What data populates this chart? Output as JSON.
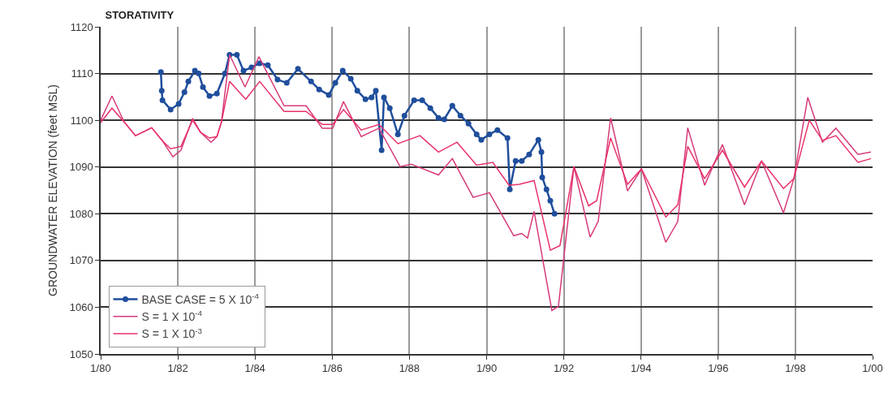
{
  "chart_data": {
    "type": "line",
    "title": "STORATIVITY",
    "ylabel": "GROUNDWATER ELEVATION (feet MSL)",
    "xlim": [
      "1980-01-01",
      "2000-01-01"
    ],
    "xticks": [
      {
        "value": "1980-01-01",
        "label": "1/80"
      },
      {
        "value": "1982-01-01",
        "label": "1/82"
      },
      {
        "value": "1984-01-01",
        "label": "1/84"
      },
      {
        "value": "1986-01-01",
        "label": "1/86"
      },
      {
        "value": "1988-01-01",
        "label": "1/88"
      },
      {
        "value": "1990-01-01",
        "label": "1/90"
      },
      {
        "value": "1992-01-01",
        "label": "1/92"
      },
      {
        "value": "1994-01-01",
        "label": "1/94"
      },
      {
        "value": "1996-01-01",
        "label": "1/96"
      },
      {
        "value": "1998-01-01",
        "label": "1/98"
      },
      {
        "value": "2000-01-01",
        "label": "1/00"
      }
    ],
    "ylim": [
      1050,
      1120
    ],
    "yticks": [
      1050,
      1060,
      1070,
      1080,
      1090,
      1100,
      1110,
      1120
    ],
    "grid": true,
    "legend": "bottom left",
    "line_style": "solid",
    "series": [
      {
        "name": "BASE CASE = 5 X 10$^{-4}$",
        "color": "#1f4e9c",
        "marker": "circle",
        "x": [
          "1981-07-24",
          "1981-08-01",
          "1981-08-08",
          "1981-10-24",
          "1982-01-08",
          "1982-03-04",
          "1982-04-10",
          "1982-06-11",
          "1982-07-17",
          "1982-08-26",
          "1982-10-27",
          "1983-01-05",
          "1983-03-22",
          "1983-05-05",
          "1983-07-13",
          "1983-09-14",
          "1983-11-29",
          "1984-02-14",
          "1984-05-01",
          "1984-08-01",
          "1984-10-27",
          "1985-02-10",
          "1985-06-14",
          "1985-08-30",
          "1985-11-29",
          "1986-01-30",
          "1986-04-10",
          "1986-06-25",
          "1986-08-26",
          "1986-11-11",
          "1987-01-08",
          "1987-02-17",
          "1987-04-13",
          "1987-05-05",
          "1987-06-29",
          "1987-09-14",
          "1987-11-15",
          "1988-02-14",
          "1988-05-01",
          "1988-07-17",
          "1988-10-02",
          "1988-11-26",
          "1989-02-10",
          "1989-04-28",
          "1989-07-13",
          "1989-09-28",
          "1989-11-11",
          "1990-01-27",
          "1990-04-13",
          "1990-07-17",
          "1990-08-08",
          "1990-10-02",
          "1990-11-29",
          "1991-02-07",
          "1991-05-05",
          "1991-06-03",
          "1991-06-11",
          "1991-07-21",
          "1991-08-26",
          "1991-10-05"
        ],
        "values": [
          1110.3,
          1106.3,
          1104.3,
          1102.3,
          1103.5,
          1106,
          1108.3,
          1110.6,
          1110,
          1107.1,
          1105.2,
          1105.7,
          1110,
          1114,
          1114,
          1110.6,
          1111.3,
          1112.2,
          1111.8,
          1108.7,
          1108,
          1111,
          1108.3,
          1106.6,
          1105.4,
          1108,
          1110.6,
          1108.9,
          1106.3,
          1104.5,
          1104.9,
          1106.3,
          1093.6,
          1104.9,
          1102.6,
          1097,
          1101,
          1104.3,
          1104.3,
          1102.6,
          1100.5,
          1100.2,
          1103.1,
          1101,
          1099.3,
          1097,
          1095.8,
          1097,
          1097.9,
          1096.2,
          1085.2,
          1091.3,
          1091.3,
          1092.7,
          1095.8,
          1093.2,
          1087.8,
          1085.2,
          1082.8,
          1080
        ]
      },
      {
        "name": "S = 1 X 10$^{-4}$",
        "color": "#d63a7a",
        "marker": "none",
        "x": [
          "1980-01-01",
          "1980-04-17",
          "1980-08-12",
          "1980-11-26",
          "1981-04-28",
          "1981-08-08",
          "1981-11-15",
          "1982-01-30",
          "1982-05-20",
          "1982-08-04",
          "1982-11-11",
          "1983-01-05",
          "1983-02-17",
          "1983-05-05",
          "1983-09-28",
          "1984-02-07",
          "1984-10-02",
          "1985-04-28",
          "1985-09-28",
          "1986-01-05",
          "1986-04-17",
          "1986-10-02",
          "1987-03-19",
          "1987-10-05",
          "1988-01-19",
          "1988-10-02",
          "1989-02-10",
          "1989-08-26",
          "1990-01-27",
          "1990-09-14",
          "1990-11-29",
          "1991-01-23",
          "1991-03-26",
          "1991-09-10",
          "1991-11-11",
          "1992-04-06",
          "1992-09-06",
          "1992-11-22",
          "1993-03-19",
          "1993-08-26",
          "1994-01-05",
          "1994-08-23",
          "1994-12-14",
          "1995-03-19",
          "1995-08-26",
          "1996-02-10",
          "1996-09-06",
          "1997-02-14",
          "1997-09-10",
          "1997-12-17",
          "1998-04-28",
          "1998-09-14",
          "1999-01-19",
          "1999-08-15",
          "1999-12-17"
        ],
        "values": [
          1100,
          1105.2,
          1099.6,
          1096.7,
          1098.4,
          1095.6,
          1092.2,
          1093.6,
          1100.4,
          1097.4,
          1095.3,
          1096.5,
          1099.6,
          1114,
          1107.1,
          1113.6,
          1103.1,
          1103.1,
          1098.3,
          1098.3,
          1104,
          1096.5,
          1098.3,
          1090.1,
          1090.6,
          1088.3,
          1091.8,
          1083.5,
          1084.5,
          1075.3,
          1075.8,
          1074.8,
          1080.5,
          1059.3,
          1060.2,
          1090.1,
          1075,
          1078.4,
          1100.5,
          1084.9,
          1089.6,
          1073.9,
          1078.3,
          1098.4,
          1086.1,
          1094.8,
          1081.9,
          1091.3,
          1080.2,
          1087.5,
          1104.9,
          1095.3,
          1098.3,
          1092.7,
          1093.2
        ]
      },
      {
        "name": "S = 1 X 10$^{-3}$",
        "color": "#e8326a",
        "marker": "none",
        "x": [
          "1980-01-01",
          "1980-04-17",
          "1980-08-12",
          "1980-11-26",
          "1981-04-28",
          "1981-08-08",
          "1981-10-24",
          "1982-01-30",
          "1982-05-20",
          "1982-08-04",
          "1982-10-27",
          "1983-01-05",
          "1983-02-17",
          "1983-05-05",
          "1983-10-05",
          "1984-02-14",
          "1984-10-02",
          "1985-04-28",
          "1985-09-28",
          "1986-01-05",
          "1986-04-17",
          "1986-10-02",
          "1987-03-19",
          "1987-09-14",
          "1988-04-10",
          "1988-10-02",
          "1989-03-26",
          "1989-09-28",
          "1990-02-28",
          "1990-08-01",
          "1990-11-07",
          "1991-03-26",
          "1991-08-26",
          "1991-11-26",
          "1992-04-06",
          "1992-08-23",
          "1992-11-07",
          "1993-03-19",
          "1993-08-26",
          "1994-01-05",
          "1994-08-23",
          "1994-12-14",
          "1995-03-19",
          "1995-08-26",
          "1996-02-10",
          "1996-09-06",
          "1997-02-14",
          "1997-09-10",
          "1997-12-17",
          "1998-05-12",
          "1998-09-14",
          "1999-01-19",
          "1999-08-15",
          "1999-12-17"
        ],
        "values": [
          1099.5,
          1102.6,
          1099.6,
          1096.7,
          1098.4,
          1095.6,
          1093.9,
          1094.4,
          1100,
          1097.4,
          1096.2,
          1096.5,
          1099.6,
          1108.3,
          1104.5,
          1108.3,
          1101.9,
          1101.9,
          1099.1,
          1099.1,
          1102.3,
          1097.9,
          1099.1,
          1095,
          1096.7,
          1093.2,
          1095.3,
          1090.4,
          1091,
          1086.1,
          1086.3,
          1087.1,
          1072.2,
          1073.2,
          1090.1,
          1081.7,
          1082.8,
          1096.2,
          1086.3,
          1089.6,
          1079.3,
          1081.9,
          1094.4,
          1087.5,
          1093.6,
          1085.7,
          1091.3,
          1085.4,
          1087.5,
          1100,
          1095.7,
          1096.7,
          1091,
          1091.8
        ]
      }
    ]
  }
}
